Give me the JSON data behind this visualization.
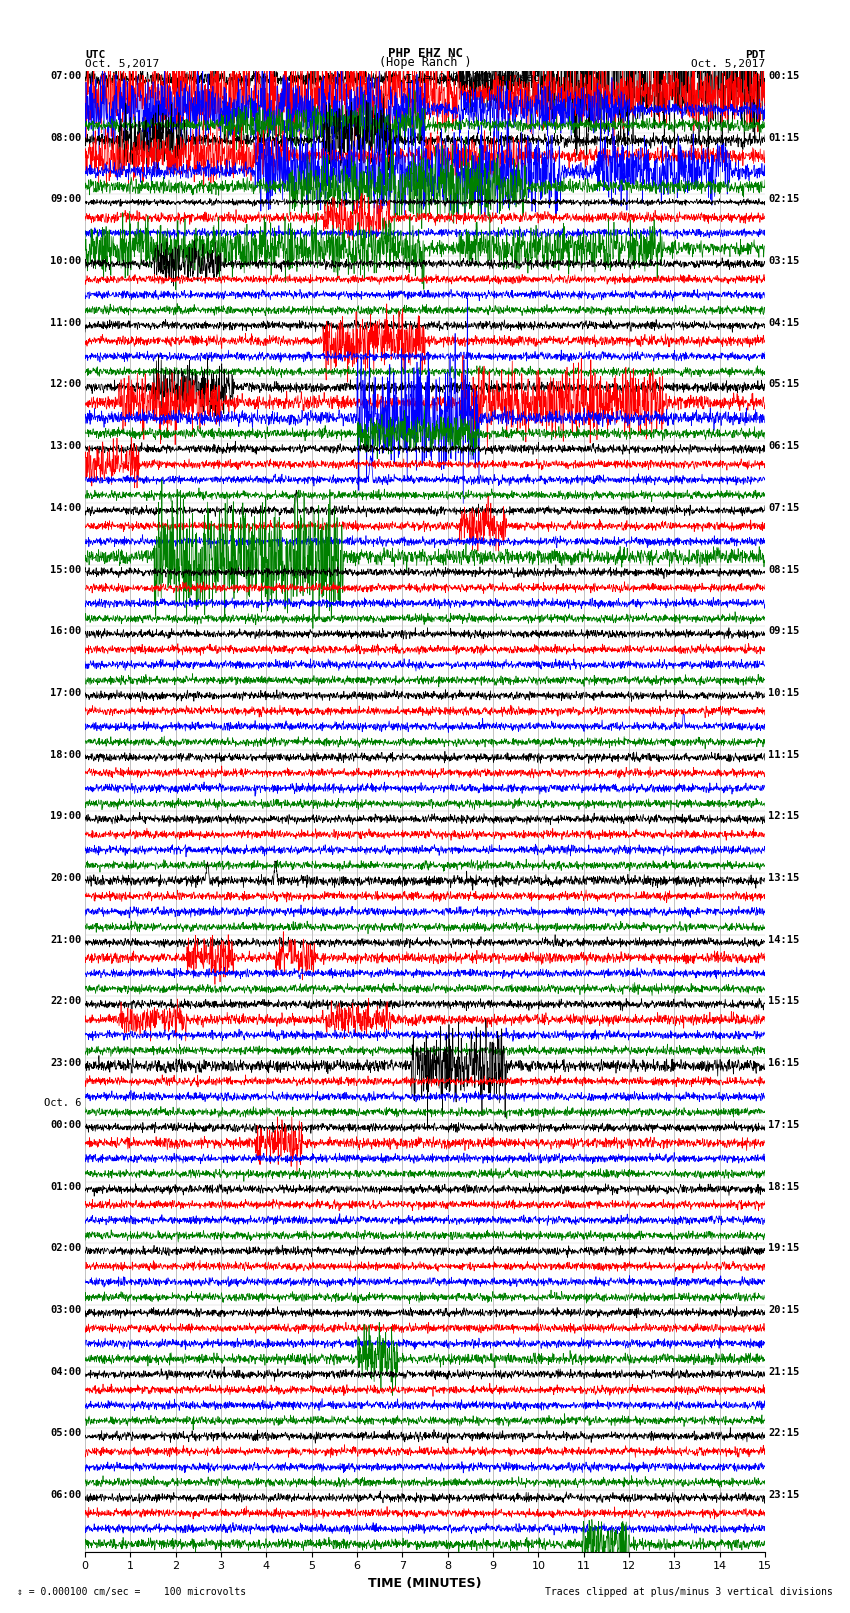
{
  "title_line1": "PHP EHZ NC",
  "title_line2": "(Hope Ranch )",
  "scale_label": "I = 0.000100 cm/sec",
  "left_date": "Oct. 5,2017",
  "right_date": "Oct. 5,2017",
  "utc_label": "UTC",
  "pdt_label": "PDT",
  "xlabel": "TIME (MINUTES)",
  "bottom_left": "0.000100 cm/sec =    100 microvolts",
  "bottom_right": "Traces clipped at plus/minus 3 vertical divisions",
  "num_hour_groups": 24,
  "traces_per_group": 4,
  "row_colors": [
    "black",
    "red",
    "blue",
    "green"
  ],
  "fig_width": 8.5,
  "fig_height": 16.13,
  "left_labels": [
    "07:00",
    "08:00",
    "09:00",
    "10:00",
    "11:00",
    "12:00",
    "13:00",
    "14:00",
    "15:00",
    "16:00",
    "17:00",
    "18:00",
    "19:00",
    "20:00",
    "21:00",
    "22:00",
    "23:00",
    "00:00",
    "01:00",
    "02:00",
    "03:00",
    "04:00",
    "05:00",
    "06:00"
  ],
  "right_labels": [
    "00:15",
    "01:15",
    "02:15",
    "03:15",
    "04:15",
    "05:15",
    "06:15",
    "07:15",
    "08:15",
    "09:15",
    "10:15",
    "11:15",
    "12:15",
    "13:15",
    "14:15",
    "15:15",
    "16:15",
    "17:15",
    "18:15",
    "19:15",
    "20:15",
    "21:15",
    "22:15",
    "23:15"
  ],
  "oct6_group_index": 17,
  "xlim": [
    0,
    15
  ],
  "xticks": [
    0,
    1,
    2,
    3,
    4,
    5,
    6,
    7,
    8,
    9,
    10,
    11,
    12,
    13,
    14,
    15
  ],
  "background_color": "white",
  "vgrid_color": "#aaaaaa",
  "n_points": 2000,
  "amplitude_scale": 0.12,
  "base_noise": 0.04
}
